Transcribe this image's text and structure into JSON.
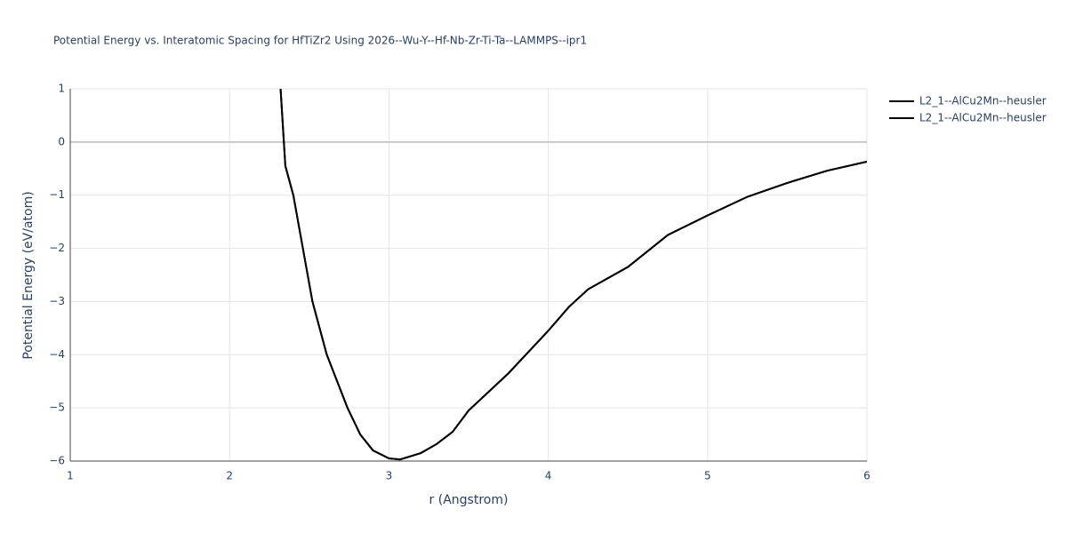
{
  "chart_data": {
    "type": "line",
    "title": "Potential Energy vs. Interatomic Spacing for HfTiZr2 Using 2026--Wu-Y--Hf-Nb-Zr-Ti-Ta--LAMMPS--ipr1",
    "x_label": "r (Angstrom)",
    "y_label": "Potential Energy (eV/atom)",
    "x": [
      2.32,
      2.35,
      2.4,
      2.46,
      2.52,
      2.61,
      2.74,
      2.82,
      2.9,
      3.0,
      3.07,
      3.2,
      3.3,
      3.4,
      3.5,
      3.75,
      4.0,
      4.13,
      4.25,
      4.5,
      4.75,
      5.0,
      5.25,
      5.5,
      5.75,
      6.0
    ],
    "series": [
      {
        "name": "L2_1--AlCu2Mn--heusler",
        "color": "#000000",
        "values": [
          1.0,
          -0.45,
          -1.0,
          -2.0,
          -3.0,
          -4.0,
          -5.0,
          -5.5,
          -5.8,
          -5.95,
          -5.97,
          -5.85,
          -5.68,
          -5.45,
          -5.05,
          -4.35,
          -3.55,
          -3.1,
          -2.77,
          -2.35,
          -1.75,
          -1.38,
          -1.03,
          -0.77,
          -0.54,
          -0.37
        ]
      },
      {
        "name": "L2_1--AlCu2Mn--heusler",
        "color": "#000000",
        "values": [
          1.0,
          -0.45,
          -1.0,
          -2.0,
          -3.0,
          -4.0,
          -5.0,
          -5.5,
          -5.8,
          -5.95,
          -5.97,
          -5.85,
          -5.68,
          -5.45,
          -5.05,
          -4.35,
          -3.55,
          -3.1,
          -2.77,
          -2.35,
          -1.75,
          -1.38,
          -1.03,
          -0.77,
          -0.54,
          -0.37
        ]
      }
    ],
    "xlim": [
      1,
      6
    ],
    "xticks": [
      1,
      2,
      3,
      4,
      5,
      6
    ],
    "ylim": [
      -6,
      1
    ],
    "yticks": [
      {
        "value": -6,
        "label": "−6"
      },
      {
        "value": -5,
        "label": "−5"
      },
      {
        "value": -4,
        "label": "−4"
      },
      {
        "value": -3,
        "label": "−3"
      },
      {
        "value": -2,
        "label": "−2"
      },
      {
        "value": -1,
        "label": "−1"
      },
      0,
      1
    ],
    "grid": true,
    "legend": "right"
  }
}
